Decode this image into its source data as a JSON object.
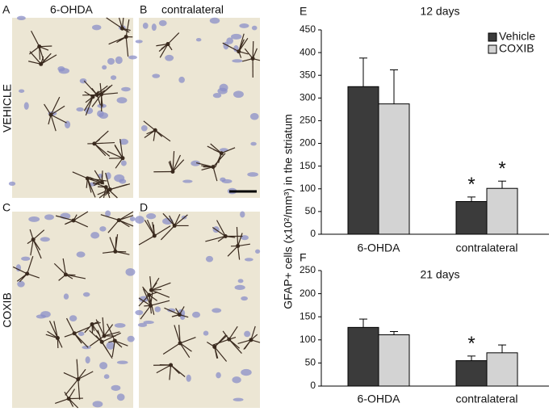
{
  "panels": [
    {
      "letter": "A",
      "label": "6-OHDA"
    },
    {
      "letter": "B",
      "label": "contralateral"
    },
    {
      "letter": "C"
    },
    {
      "letter": "D"
    }
  ],
  "row_labels": [
    "VEHICLE",
    "COXIB"
  ],
  "y_label": "GFAP+ cells (x10²/mm³) in the striatum",
  "chart_data": [
    {
      "type": "bar",
      "letter": "E",
      "title": "12 days",
      "categories": [
        "6-OHDA",
        "contralateral"
      ],
      "series": [
        {
          "name": "Vehicle",
          "color": "#3b3b3b",
          "values": [
            325,
            72
          ],
          "errors": [
            63,
            10
          ],
          "markers": [
            null,
            "*"
          ]
        },
        {
          "name": "COXIB",
          "color": "#d3d3d3",
          "values": [
            287,
            101
          ],
          "errors": [
            75,
            16
          ],
          "markers": [
            null,
            "*"
          ]
        }
      ],
      "ylim": [
        0,
        450
      ],
      "yticks": [
        0,
        50,
        100,
        150,
        200,
        250,
        300,
        350,
        400,
        450
      ],
      "legend": "upper right"
    },
    {
      "type": "bar",
      "letter": "F",
      "title": "21 days",
      "categories": [
        "6-OHDA",
        "contralateral"
      ],
      "series": [
        {
          "name": "Vehicle",
          "color": "#3b3b3b",
          "values": [
            127,
            55
          ],
          "errors": [
            18,
            10
          ],
          "markers": [
            null,
            "*"
          ]
        },
        {
          "name": "COXIB",
          "color": "#d3d3d3",
          "values": [
            111,
            72
          ],
          "errors": [
            7,
            17
          ],
          "markers": [
            null,
            null
          ]
        }
      ],
      "ylim": [
        0,
        250
      ],
      "yticks": [
        0,
        50,
        100,
        150,
        200,
        250
      ],
      "legend": false
    }
  ]
}
